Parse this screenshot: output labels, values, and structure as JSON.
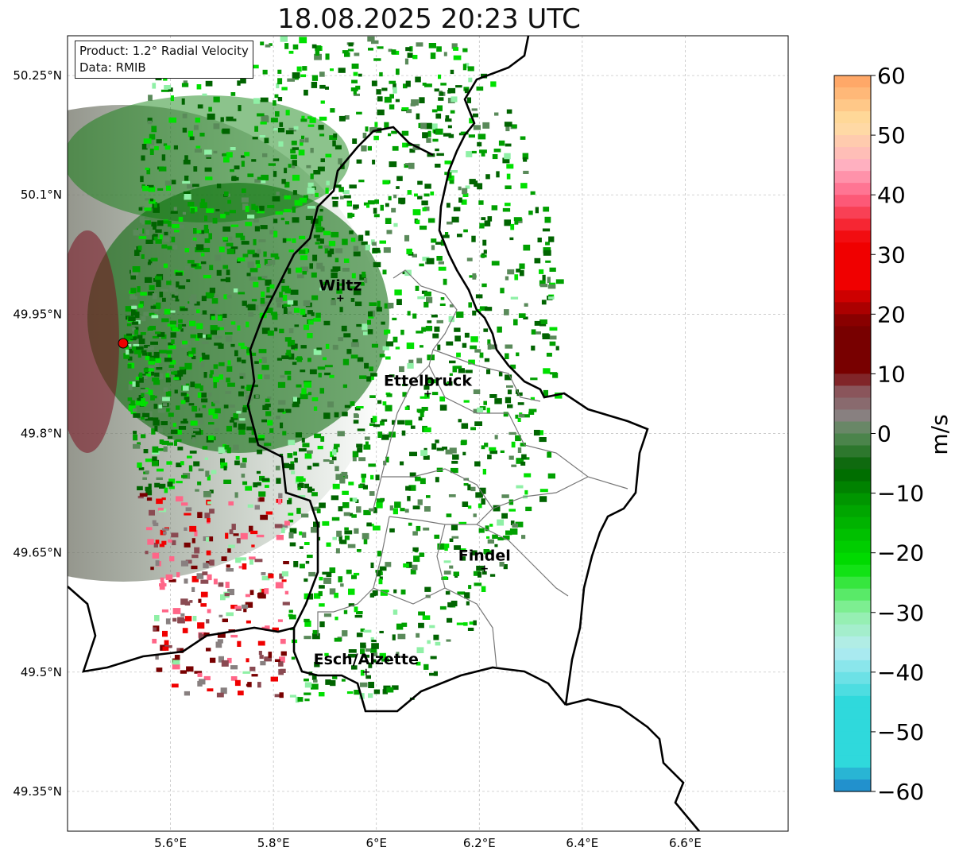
{
  "title": "18.08.2025 20:23 UTC",
  "info_box": {
    "product": "Product: 1.2° Radial Velocity",
    "data": "Data: RMIB"
  },
  "map": {
    "lon_ticks": [
      "5.6°E",
      "5.8°E",
      "6°E",
      "6.2°E",
      "6.4°E",
      "6.6°E"
    ],
    "lat_ticks": [
      "50.25°N",
      "50.1°N",
      "49.95°N",
      "49.8°N",
      "49.65°N",
      "49.5°N",
      "49.35°N"
    ],
    "lon_values": [
      5.6,
      5.8,
      6.0,
      6.2,
      6.4,
      6.6
    ],
    "lat_values": [
      50.25,
      50.1,
      49.95,
      49.8,
      49.65,
      49.5,
      49.35
    ],
    "extent": {
      "lon_min": 5.4,
      "lon_max": 6.8,
      "lat_min": 49.3,
      "lat_max": 50.3
    },
    "grid": true,
    "radar_site": {
      "lon": 5.505,
      "lat": 49.914
    },
    "cities": [
      {
        "name": "Wiltz",
        "lon": 5.93,
        "lat": 49.97
      },
      {
        "name": "Ettelbruck",
        "lon": 6.1,
        "lat": 49.85
      },
      {
        "name": "Findel",
        "lon": 6.21,
        "lat": 49.63
      },
      {
        "name": "Esch/Alzette",
        "lon": 5.98,
        "lat": 49.5
      }
    ]
  },
  "colorbar": {
    "label": "m/s",
    "ticks": [
      "60",
      "50",
      "40",
      "30",
      "20",
      "10",
      "0",
      "−10",
      "−20",
      "−30",
      "−40",
      "−50",
      "−60"
    ],
    "tick_values": [
      60,
      50,
      40,
      30,
      20,
      10,
      0,
      -10,
      -20,
      -30,
      -40,
      -50,
      -60
    ],
    "range": [
      -60,
      60
    ],
    "colors": {
      "min": "#1f7fc9",
      "cyan": "#2fd9dc",
      "light_cyan": "#b8ecf2",
      "light_green": "#8ff0a6",
      "bright_green": "#00e000",
      "green": "#00a000",
      "dark_green": "#006400",
      "grey_green": "#5a8a5a",
      "grey": "#888080",
      "maroon_grey": "#8a4a52",
      "dark_red": "#780000",
      "red": "#f00000",
      "pink": "#ff6688",
      "light_pink": "#ffb0c0",
      "peach": "#ffe0a0",
      "orange": "#ffa060"
    }
  }
}
